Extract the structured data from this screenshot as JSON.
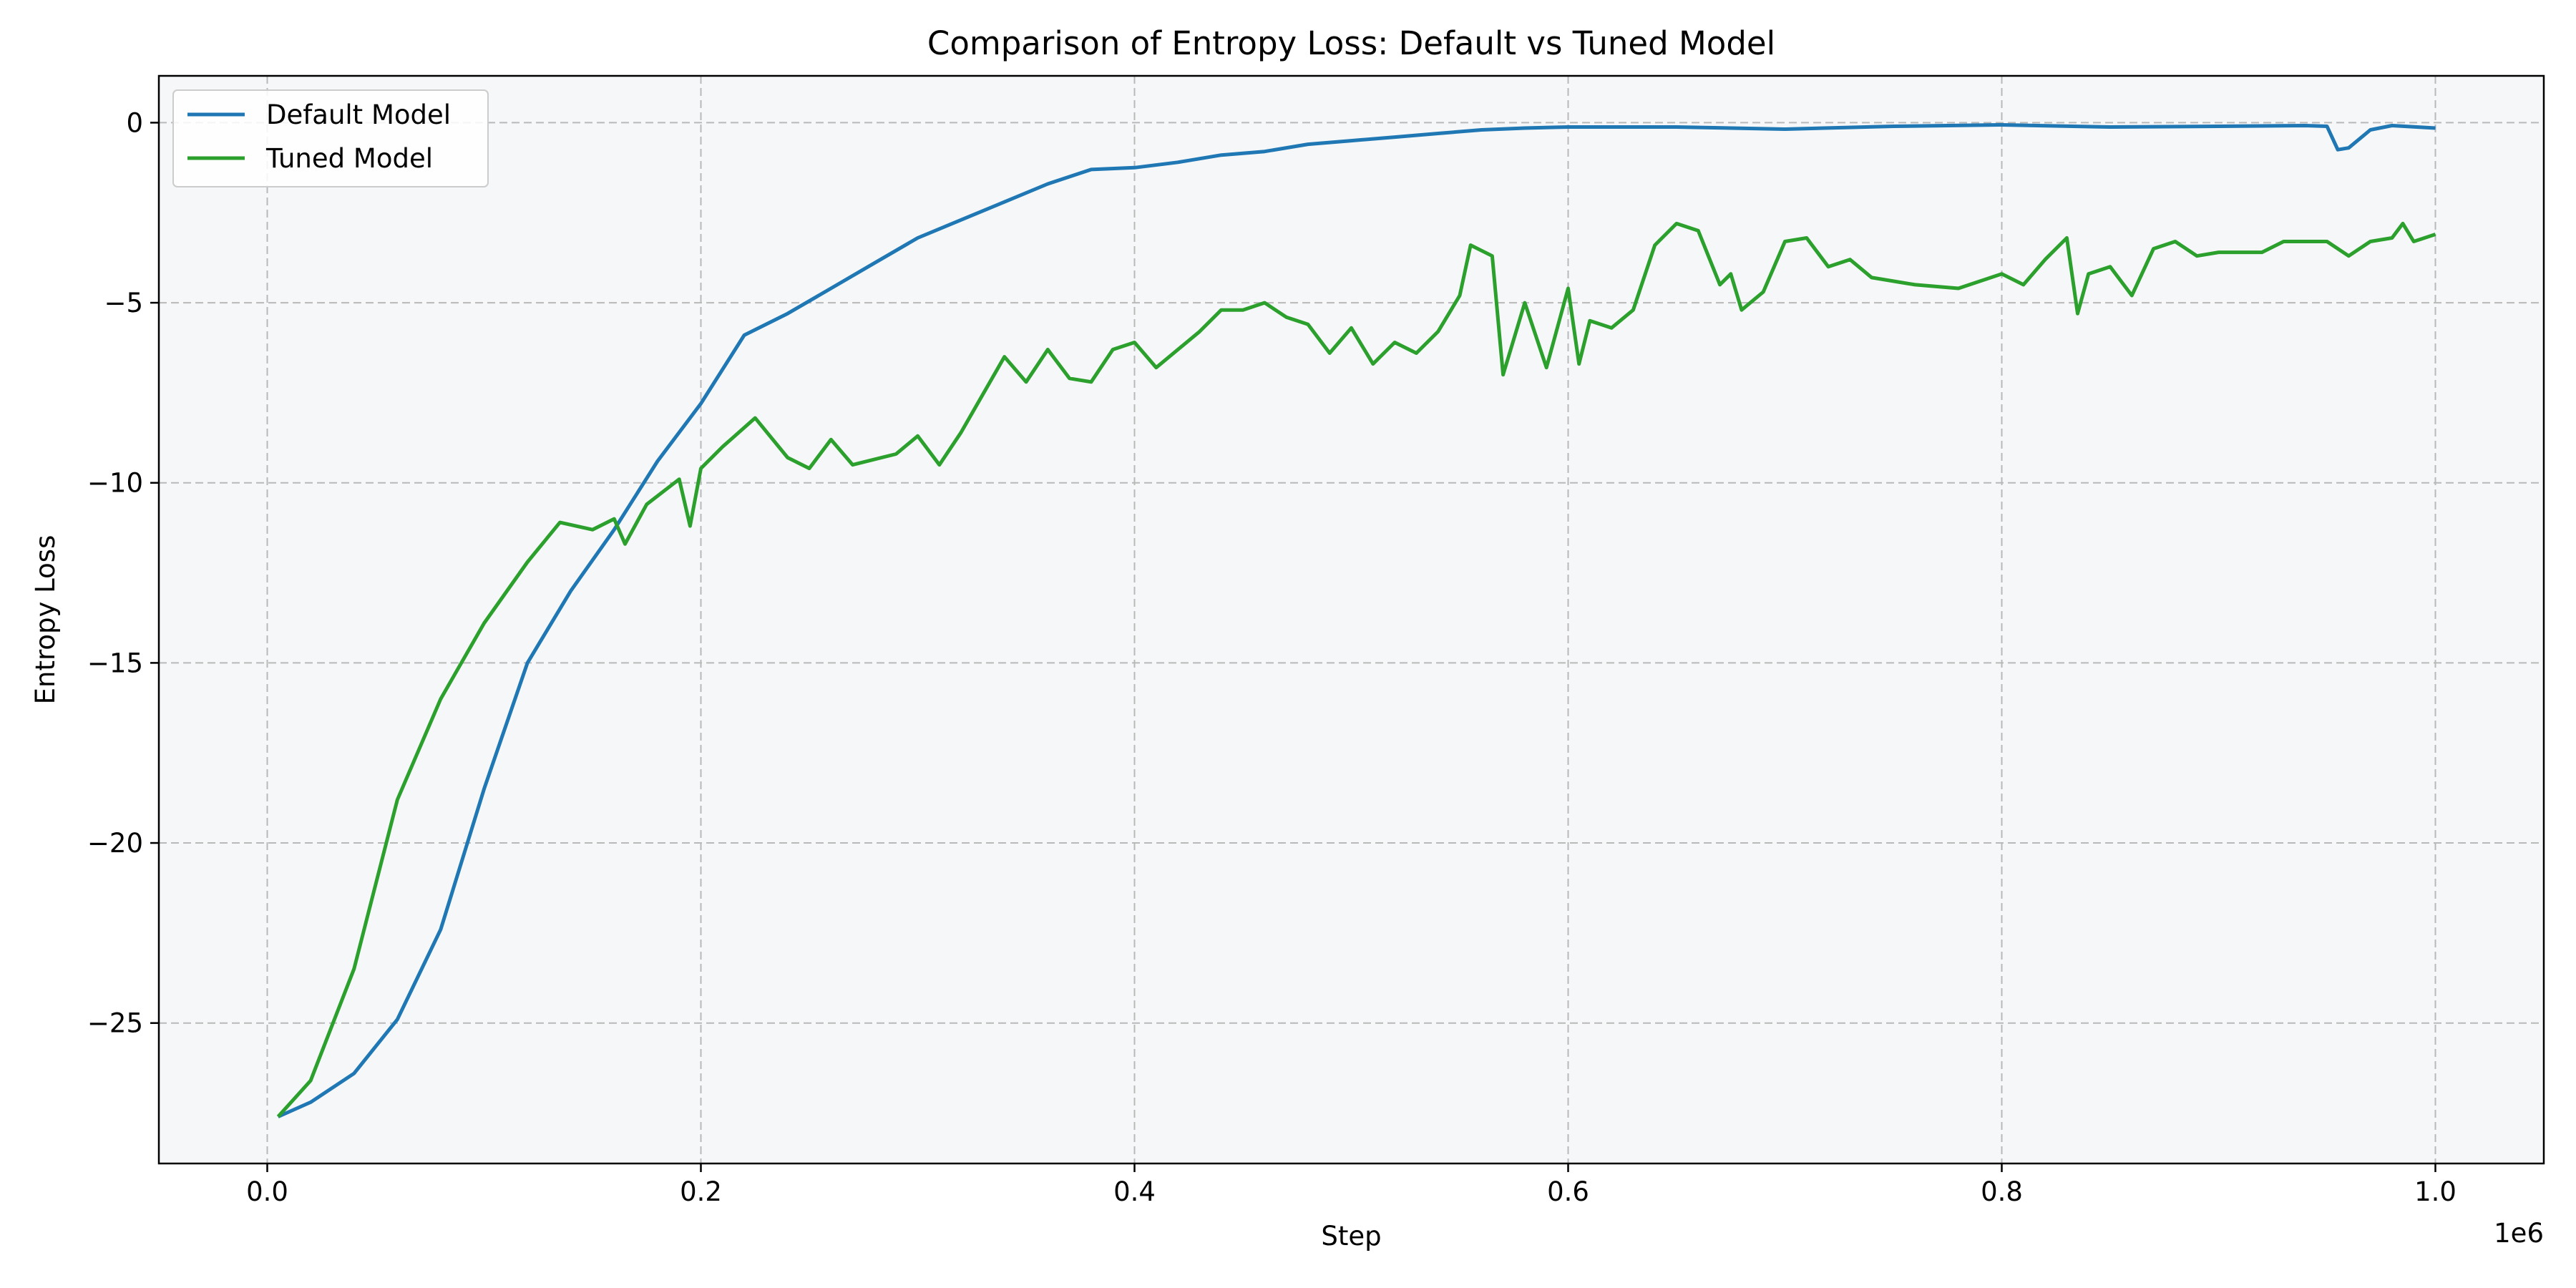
{
  "chart_data": {
    "type": "line",
    "title": "Comparison of Entropy Loss: Default vs Tuned Model",
    "xlabel": "Step",
    "ylabel": "Entropy Loss",
    "x_offset_label": "1e6",
    "x_scale": 1000000,
    "xlim": [
      -0.05,
      1.05
    ],
    "ylim": [
      -28.9,
      1.3
    ],
    "xticks": [
      0.0,
      0.2,
      0.4,
      0.6,
      0.8,
      1.0
    ],
    "xtick_labels": [
      "0.0",
      "0.2",
      "0.4",
      "0.6",
      "0.8",
      "1.0"
    ],
    "yticks": [
      0,
      -5,
      -10,
      -15,
      -20,
      -25
    ],
    "ytick_labels": [
      "0",
      "−5",
      "−10",
      "−15",
      "−20",
      "−25"
    ],
    "grid": true,
    "plot_background": "#f5f7f9",
    "legend_location": "upper left",
    "series": [
      {
        "name": "Default Model",
        "color": "#1f77b4",
        "points": [
          [
            0.005,
            -27.6
          ],
          [
            0.02,
            -27.2
          ],
          [
            0.04,
            -26.4
          ],
          [
            0.06,
            -24.9
          ],
          [
            0.08,
            -22.4
          ],
          [
            0.1,
            -18.5
          ],
          [
            0.12,
            -15.0
          ],
          [
            0.14,
            -13.0
          ],
          [
            0.16,
            -11.3
          ],
          [
            0.18,
            -9.4
          ],
          [
            0.2,
            -7.8
          ],
          [
            0.22,
            -5.9
          ],
          [
            0.24,
            -5.3
          ],
          [
            0.26,
            -4.6
          ],
          [
            0.28,
            -3.9
          ],
          [
            0.3,
            -3.2
          ],
          [
            0.32,
            -2.7
          ],
          [
            0.34,
            -2.2
          ],
          [
            0.36,
            -1.7
          ],
          [
            0.38,
            -1.3
          ],
          [
            0.4,
            -1.25
          ],
          [
            0.42,
            -1.1
          ],
          [
            0.44,
            -0.9
          ],
          [
            0.46,
            -0.8
          ],
          [
            0.48,
            -0.6
          ],
          [
            0.5,
            -0.5
          ],
          [
            0.52,
            -0.4
          ],
          [
            0.54,
            -0.3
          ],
          [
            0.56,
            -0.2
          ],
          [
            0.58,
            -0.15
          ],
          [
            0.6,
            -0.12
          ],
          [
            0.65,
            -0.12
          ],
          [
            0.7,
            -0.18
          ],
          [
            0.75,
            -0.1
          ],
          [
            0.8,
            -0.06
          ],
          [
            0.85,
            -0.12
          ],
          [
            0.9,
            -0.1
          ],
          [
            0.94,
            -0.08
          ],
          [
            0.95,
            -0.1
          ],
          [
            0.955,
            -0.75
          ],
          [
            0.96,
            -0.7
          ],
          [
            0.97,
            -0.2
          ],
          [
            0.98,
            -0.08
          ],
          [
            1.0,
            -0.15
          ]
        ]
      },
      {
        "name": "Tuned Model",
        "color": "#2ca02c",
        "points": [
          [
            0.005,
            -27.6
          ],
          [
            0.02,
            -26.6
          ],
          [
            0.04,
            -23.5
          ],
          [
            0.06,
            -18.8
          ],
          [
            0.08,
            -16.0
          ],
          [
            0.1,
            -13.9
          ],
          [
            0.12,
            -12.2
          ],
          [
            0.135,
            -11.1
          ],
          [
            0.15,
            -11.3
          ],
          [
            0.16,
            -11.0
          ],
          [
            0.165,
            -11.7
          ],
          [
            0.175,
            -10.6
          ],
          [
            0.19,
            -9.9
          ],
          [
            0.195,
            -11.2
          ],
          [
            0.2,
            -9.6
          ],
          [
            0.21,
            -9.0
          ],
          [
            0.225,
            -8.2
          ],
          [
            0.24,
            -9.3
          ],
          [
            0.25,
            -9.6
          ],
          [
            0.26,
            -8.8
          ],
          [
            0.27,
            -9.5
          ],
          [
            0.29,
            -9.2
          ],
          [
            0.3,
            -8.7
          ],
          [
            0.31,
            -9.5
          ],
          [
            0.32,
            -8.6
          ],
          [
            0.34,
            -6.5
          ],
          [
            0.35,
            -7.2
          ],
          [
            0.36,
            -6.3
          ],
          [
            0.37,
            -7.1
          ],
          [
            0.38,
            -7.2
          ],
          [
            0.39,
            -6.3
          ],
          [
            0.4,
            -6.1
          ],
          [
            0.41,
            -6.8
          ],
          [
            0.43,
            -5.8
          ],
          [
            0.44,
            -5.2
          ],
          [
            0.45,
            -5.2
          ],
          [
            0.46,
            -5.0
          ],
          [
            0.47,
            -5.4
          ],
          [
            0.48,
            -5.6
          ],
          [
            0.49,
            -6.4
          ],
          [
            0.5,
            -5.7
          ],
          [
            0.51,
            -6.7
          ],
          [
            0.52,
            -6.1
          ],
          [
            0.53,
            -6.4
          ],
          [
            0.54,
            -5.8
          ],
          [
            0.55,
            -4.8
          ],
          [
            0.555,
            -3.4
          ],
          [
            0.565,
            -3.7
          ],
          [
            0.57,
            -7.0
          ],
          [
            0.58,
            -5.0
          ],
          [
            0.59,
            -6.8
          ],
          [
            0.6,
            -4.6
          ],
          [
            0.605,
            -6.7
          ],
          [
            0.61,
            -5.5
          ],
          [
            0.62,
            -5.7
          ],
          [
            0.63,
            -5.2
          ],
          [
            0.64,
            -3.4
          ],
          [
            0.65,
            -2.8
          ],
          [
            0.66,
            -3.0
          ],
          [
            0.67,
            -4.5
          ],
          [
            0.675,
            -4.2
          ],
          [
            0.68,
            -5.2
          ],
          [
            0.69,
            -4.7
          ],
          [
            0.7,
            -3.3
          ],
          [
            0.71,
            -3.2
          ],
          [
            0.72,
            -4.0
          ],
          [
            0.73,
            -3.8
          ],
          [
            0.74,
            -4.3
          ],
          [
            0.76,
            -4.5
          ],
          [
            0.78,
            -4.6
          ],
          [
            0.8,
            -4.2
          ],
          [
            0.81,
            -4.5
          ],
          [
            0.82,
            -3.8
          ],
          [
            0.83,
            -3.2
          ],
          [
            0.835,
            -5.3
          ],
          [
            0.84,
            -4.2
          ],
          [
            0.85,
            -4.0
          ],
          [
            0.86,
            -4.8
          ],
          [
            0.87,
            -3.5
          ],
          [
            0.88,
            -3.3
          ],
          [
            0.89,
            -3.7
          ],
          [
            0.9,
            -3.6
          ],
          [
            0.92,
            -3.6
          ],
          [
            0.93,
            -3.3
          ],
          [
            0.95,
            -3.3
          ],
          [
            0.96,
            -3.7
          ],
          [
            0.97,
            -3.3
          ],
          [
            0.98,
            -3.2
          ],
          [
            0.985,
            -2.8
          ],
          [
            0.99,
            -3.3
          ],
          [
            1.0,
            -3.1
          ]
        ]
      }
    ]
  }
}
